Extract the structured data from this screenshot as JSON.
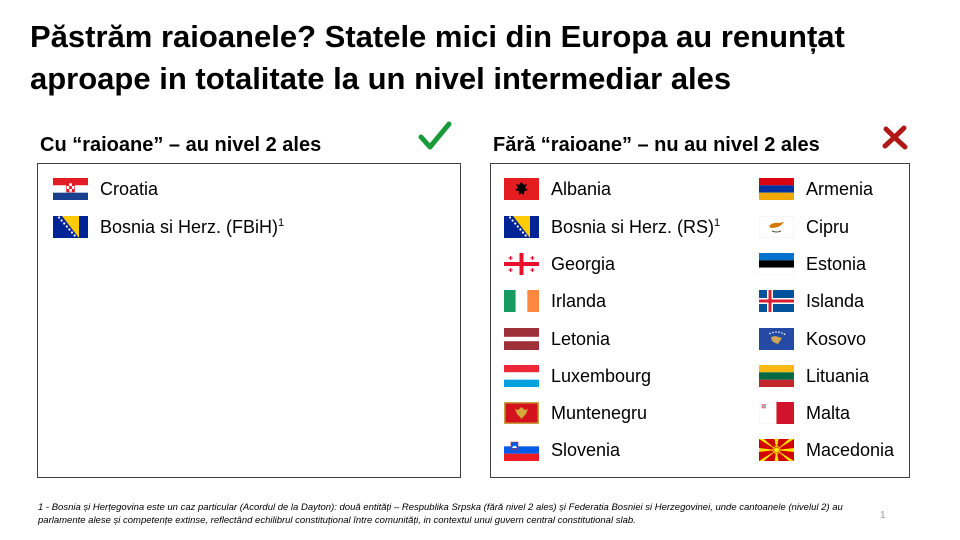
{
  "slide": {
    "title": "Păstrăm raioanele? Statele mici din Europa au renunțat aproape in totalitate la un nivel intermediar ales",
    "page_number": "1"
  },
  "left_panel": {
    "heading": "Cu “raioane” – au nivel 2 ales",
    "status_icon": "check-icon",
    "status_color": "#1a9a3a",
    "countries": [
      {
        "name": "Croatia",
        "flag": "croatia-flag",
        "sup": ""
      },
      {
        "name": "Bosnia si Herz. (FBiH)",
        "flag": "bosnia-flag",
        "sup": "1"
      }
    ]
  },
  "right_panel": {
    "heading": "Fără “raioane” – nu au nivel 2 ales",
    "status_icon": "cross-icon",
    "status_color": "#b01818",
    "col1": [
      {
        "name": "Albania",
        "flag": "albania-flag",
        "sup": ""
      },
      {
        "name": "Bosnia si Herz. (RS)",
        "flag": "bosnia-flag",
        "sup": "1"
      },
      {
        "name": "Georgia",
        "flag": "georgia-flag",
        "sup": ""
      },
      {
        "name": "Irlanda",
        "flag": "ireland-flag",
        "sup": ""
      },
      {
        "name": "Letonia",
        "flag": "latvia-flag",
        "sup": ""
      },
      {
        "name": "Luxembourg",
        "flag": "luxembourg-flag",
        "sup": ""
      },
      {
        "name": "Muntenegru",
        "flag": "montenegro-flag",
        "sup": ""
      },
      {
        "name": "Slovenia",
        "flag": "slovenia-flag",
        "sup": ""
      }
    ],
    "col2": [
      {
        "name": "Armenia",
        "flag": "armenia-flag",
        "sup": ""
      },
      {
        "name": "Cipru",
        "flag": "cyprus-flag",
        "sup": ""
      },
      {
        "name": "Estonia",
        "flag": "estonia-flag",
        "sup": ""
      },
      {
        "name": "Islanda",
        "flag": "iceland-flag",
        "sup": ""
      },
      {
        "name": "Kosovo",
        "flag": "kosovo-flag",
        "sup": ""
      },
      {
        "name": "Lituania",
        "flag": "lithuania-flag",
        "sup": ""
      },
      {
        "name": "Malta",
        "flag": "malta-flag",
        "sup": ""
      },
      {
        "name": "Macedonia",
        "flag": "macedonia-flag",
        "sup": ""
      }
    ]
  },
  "footnote": "1 - Bosnia și Herțegovina este un caz particular (Acordul de la Dayton): două entități – Respublika Srpska (fără nivel 2 ales) și Federatia Bosniei si Herzegovinei, unde cantoanele (nivelul 2) au parlamente alese și competențe extinse, reflectând echilibrul constituțional între comunități, in contextul unui guvern central constitutional slab."
}
